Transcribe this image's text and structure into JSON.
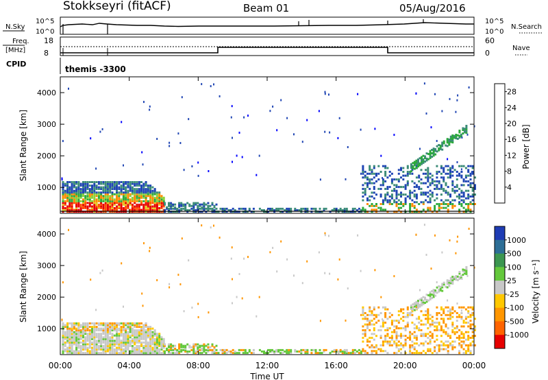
{
  "header": {
    "station": "Stokkseyri (fitACF)",
    "beam": "Beam 01",
    "date": "05/Aug/2016"
  },
  "top_panels": {
    "nsky_label": "N.Sky",
    "nsky_ticks": [
      "10^5",
      "10^0"
    ],
    "nsearch_label": "N.Search",
    "nsearch_ticks": [
      "10^5",
      "10^0"
    ],
    "freq_label_line1": "Freq.",
    "freq_label_line2": "[MHz]",
    "freq_ticks": [
      "18",
      "8"
    ],
    "nave_label": "Nave",
    "nave_ticks": [
      "60",
      "0"
    ],
    "cpid_label": "CPID",
    "cpid_text": "themis -3300"
  },
  "chart_data": [
    {
      "type": "heatmap",
      "name": "power",
      "ylabel": "Slant Range [km]",
      "yticks": [
        "1000",
        "2000",
        "3000",
        "4000"
      ],
      "ylim": [
        180,
        4500
      ],
      "xlabel": "",
      "xticks": [
        "00:00",
        "04:00",
        "08:00",
        "12:00",
        "16:00",
        "20:00",
        "00:00"
      ],
      "xlim_hours": [
        0,
        24
      ],
      "colorbar": {
        "label": "Power [dB]",
        "ticks": [
          "28",
          "24",
          "20",
          "16",
          "12",
          "8",
          "4"
        ],
        "range": [
          0,
          30
        ],
        "colors": [
          "#0000ff",
          "#2046b4",
          "#3c8c78",
          "#2daa3c",
          "#8cd23c",
          "#e6c81e",
          "#ff8c00",
          "#ff5000",
          "#e60000"
        ]
      },
      "regions": [
        {
          "t0": 0.1,
          "t1": 6.0,
          "r0": 180,
          "r1": 1150,
          "level": "strong"
        },
        {
          "t0": 6.0,
          "t1": 9.0,
          "r0": 180,
          "r1": 500,
          "level": "weak"
        },
        {
          "t0": 9.0,
          "t1": 17.5,
          "r0": 180,
          "r1": 350,
          "level": "weak"
        },
        {
          "t0": 17.5,
          "t1": 24.0,
          "r0": 180,
          "r1": 1700,
          "level": "moderate"
        },
        {
          "t0": 20.5,
          "t1": 23.5,
          "r0": 1700,
          "r1": 2800,
          "level": "arc"
        }
      ]
    },
    {
      "type": "heatmap",
      "name": "velocity",
      "ylabel": "Slant Range [km]",
      "yticks": [
        "1000",
        "2000",
        "3000",
        "4000"
      ],
      "ylim": [
        180,
        4500
      ],
      "xlabel": "Time UT",
      "xticks": [
        "00:00",
        "04:00",
        "08:00",
        "12:00",
        "16:00",
        "20:00",
        "00:00"
      ],
      "xlim_hours": [
        0,
        24
      ],
      "colorbar": {
        "label": "Velocity [m s⁻¹]",
        "ticks": [
          "1000",
          "500",
          "100",
          "25",
          "-25",
          "-100",
          "-500",
          "-1000"
        ],
        "colors": [
          "#1e3cb4",
          "#2d6e96",
          "#3c9650",
          "#64c83c",
          "#c8c8c8",
          "#ffc800",
          "#ff9600",
          "#ff6400",
          "#e60000"
        ]
      }
    }
  ],
  "palette": {
    "frame": "#000000",
    "background": "#ffffff"
  }
}
